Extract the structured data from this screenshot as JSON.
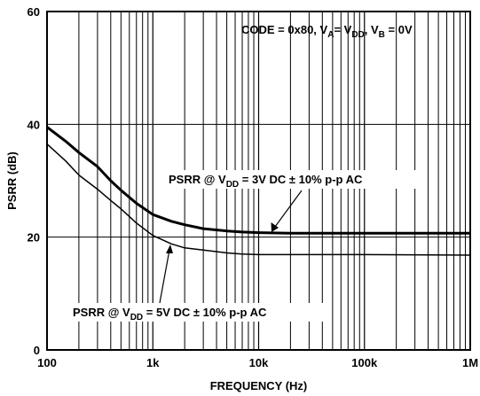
{
  "chart_data": {
    "type": "line",
    "title": "",
    "xlabel": "FREQUENCY (Hz)",
    "ylabel": "PSRR (dB)",
    "xscale": "log",
    "xlim": [
      100,
      1000000
    ],
    "ylim": [
      0,
      60
    ],
    "grid": true,
    "x_ticks": [
      {
        "value": 100,
        "label": "100"
      },
      {
        "value": 1000,
        "label": "1k"
      },
      {
        "value": 10000,
        "label": "10k"
      },
      {
        "value": 100000,
        "label": "100k"
      },
      {
        "value": 1000000,
        "label": "1M"
      }
    ],
    "y_ticks": [
      {
        "value": 0,
        "label": "0"
      },
      {
        "value": 20,
        "label": "20"
      },
      {
        "value": 40,
        "label": "40"
      },
      {
        "value": 60,
        "label": "60"
      }
    ],
    "annotation_condition": {
      "main": "CODE = 0x80, V",
      "sub1": "A",
      "mid1": "= V",
      "sub2": "DD",
      "mid2": ", V",
      "sub3": "B",
      "tail": " = 0V"
    },
    "series": [
      {
        "label_prefix": "PSRR @ V",
        "label_sub": "DD",
        "label_suffix": " = 3V DC ± 10% p-p AC",
        "points": [
          [
            100,
            39.5
          ],
          [
            150,
            37
          ],
          [
            200,
            35
          ],
          [
            300,
            32.5
          ],
          [
            400,
            30
          ],
          [
            500,
            28.3
          ],
          [
            700,
            26
          ],
          [
            1000,
            24
          ],
          [
            1500,
            22.8
          ],
          [
            2000,
            22.2
          ],
          [
            3000,
            21.5
          ],
          [
            5000,
            21.1
          ],
          [
            7000,
            20.9
          ],
          [
            10000,
            20.8
          ],
          [
            20000,
            20.7
          ],
          [
            100000,
            20.7
          ],
          [
            1000000,
            20.7
          ]
        ]
      },
      {
        "label_prefix": "PSRR @ V",
        "label_sub": "DD",
        "label_suffix": " = 5V DC ± 10% p-p AC",
        "points": [
          [
            100,
            36.5
          ],
          [
            150,
            33.5
          ],
          [
            200,
            31
          ],
          [
            300,
            28.5
          ],
          [
            400,
            26.5
          ],
          [
            500,
            25
          ],
          [
            700,
            22.5
          ],
          [
            1000,
            20.3
          ],
          [
            1500,
            18.8
          ],
          [
            2000,
            18.1
          ],
          [
            3000,
            17.7
          ],
          [
            5000,
            17.2
          ],
          [
            7000,
            17.0
          ],
          [
            10000,
            16.9
          ],
          [
            100000,
            16.9
          ],
          [
            1000000,
            16.8
          ]
        ]
      }
    ]
  }
}
